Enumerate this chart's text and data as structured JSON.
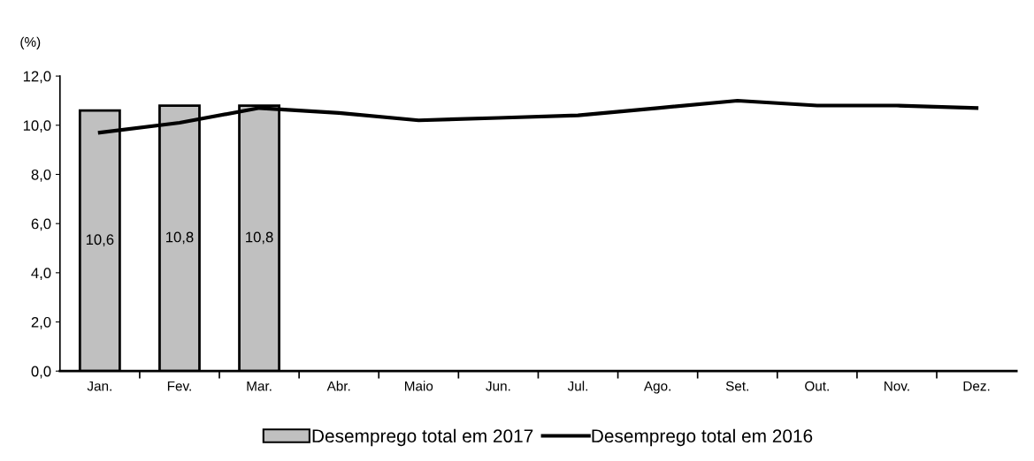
{
  "chart_data": {
    "type": "bar",
    "ylabel": "(%)",
    "categories": [
      "Jan.",
      "Fev.",
      "Mar.",
      "Abr.",
      "Maio",
      "Jun.",
      "Jul.",
      "Ago.",
      "Set.",
      "Out.",
      "Nov.",
      "Dez."
    ],
    "series": [
      {
        "name": "Desemprego total em 2017",
        "color": "#c0c0c0",
        "values": [
          10.6,
          10.8,
          10.8,
          null,
          null,
          null,
          null,
          null,
          null,
          null,
          null,
          null
        ],
        "value_labels": [
          "10,6",
          "10,8",
          "10,8",
          null,
          null,
          null,
          null,
          null,
          null,
          null,
          null,
          null
        ]
      },
      {
        "name": "Desemprego total em 2016",
        "type": "line",
        "color": "#000000",
        "values": [
          9.7,
          10.1,
          10.7,
          10.5,
          10.2,
          10.3,
          10.4,
          10.7,
          11.0,
          10.8,
          10.8,
          10.7
        ]
      }
    ],
    "ylim": [
      0,
      12
    ],
    "yticks": [
      {
        "value": 0,
        "label": "0,0"
      },
      {
        "value": 2,
        "label": "2,0"
      },
      {
        "value": 4,
        "label": "4,0"
      },
      {
        "value": 6,
        "label": "6,0"
      },
      {
        "value": 8,
        "label": "8,0"
      },
      {
        "value": 10,
        "label": "10,0"
      },
      {
        "value": 12,
        "label": "12,0"
      }
    ],
    "legend": "bottom",
    "grid": false
  }
}
